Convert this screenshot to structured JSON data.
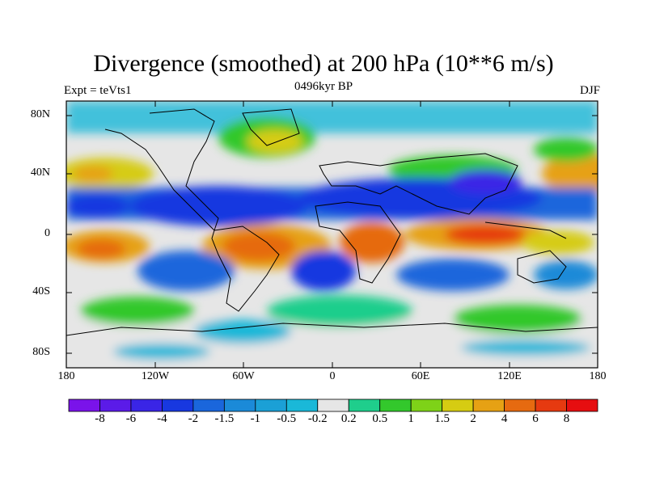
{
  "chart_data": {
    "type": "heatmap",
    "title": "Divergence (smoothed) at 200 hPa (10**6 m/s)",
    "subtitle_left": "Expt = teVts1",
    "subtitle_center": "0496kyr BP",
    "subtitle_right": "DJF",
    "lat_ticks": [
      "80N",
      "40N",
      "0",
      "40S",
      "80S"
    ],
    "lon_ticks": [
      "180",
      "120W",
      "60W",
      "0",
      "60E",
      "120E",
      "180"
    ],
    "xlim": [
      -180,
      180
    ],
    "ylim": [
      -90,
      90
    ],
    "colorbar": {
      "levels": [
        "-8",
        "-6",
        "-4",
        "-2",
        "-1.5",
        "-1",
        "-0.5",
        "-0.2",
        "0.2",
        "0.5",
        "1",
        "1.5",
        "2",
        "4",
        "6",
        "8"
      ],
      "colors": [
        "#7a13ea",
        "#5b1be8",
        "#3a25e6",
        "#1838e0",
        "#1a66dc",
        "#1b8ad8",
        "#1ba0d6",
        "#1ab8d8",
        "#e6e6e6",
        "#1fce8c",
        "#33c82c",
        "#7ed218",
        "#d6cc12",
        "#e6a114",
        "#e66a10",
        "#e63a10",
        "#e60e10"
      ]
    }
  }
}
